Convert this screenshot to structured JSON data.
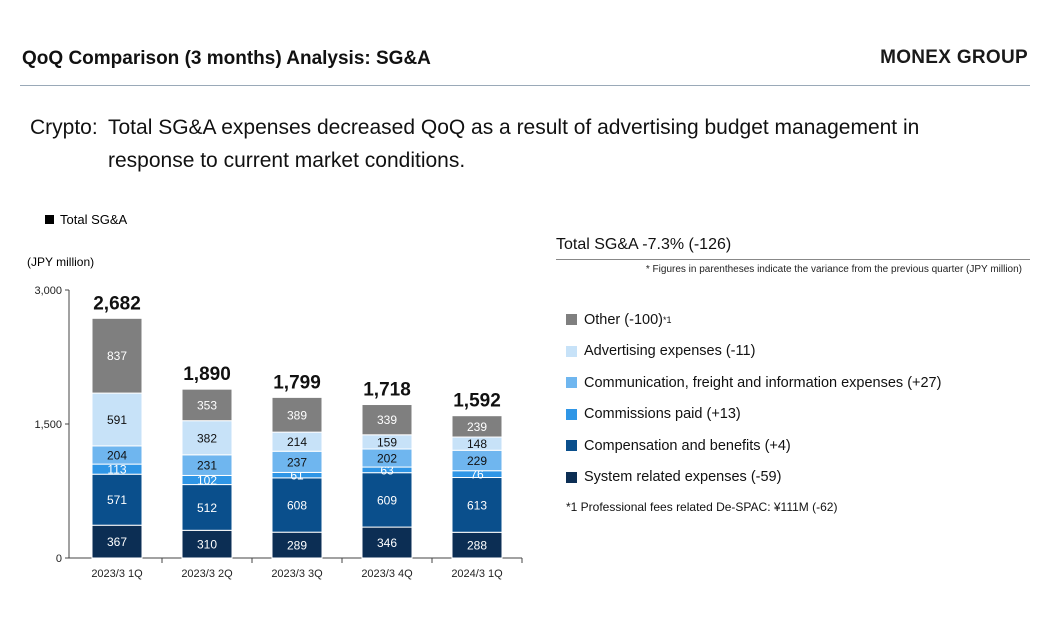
{
  "header": {
    "title": "QoQ Comparison (3 months) Analysis: SG&A",
    "brand": "MONEX GROUP"
  },
  "summary": {
    "label": "Crypto:",
    "line1": "Total SG&A expenses decreased QoQ as a result of advertising budget management in",
    "line2": "response to current market conditions."
  },
  "legend": {
    "total_label": "Total SG&A"
  },
  "unit_label": "(JPY million)",
  "right_panel": {
    "title": "Total SG&A -7.3% (-126)",
    "note": "* Figures in parentheses indicate the variance from the previous quarter (JPY million)",
    "items": [
      {
        "label": "Other (-100)",
        "sup": "*1",
        "color": "#7f7f7f"
      },
      {
        "label": "Advertising expenses (-11)",
        "sup": "",
        "color": "#c7e2f8"
      },
      {
        "label": "Communication, freight and information expenses (+27)",
        "sup": "",
        "color": "#6fb6ef"
      },
      {
        "label": "Commissions paid (+13)",
        "sup": "",
        "color": "#2f96e6"
      },
      {
        "label": "Compensation and benefits (+4)",
        "sup": "",
        "color": "#0a4f8c"
      },
      {
        "label": "System related expenses (-59)",
        "sup": "",
        "color": "#0c2e54"
      }
    ],
    "footnote": "*1 Professional fees related De-SPAC: ¥111M (-62)"
  },
  "chart_data": {
    "type": "bar",
    "stacked": true,
    "categories": [
      "2023/3 1Q",
      "2023/3 2Q",
      "2023/3 3Q",
      "2023/3 4Q",
      "2024/3 1Q"
    ],
    "series": [
      {
        "name": "System related expenses",
        "color": "#0c2e54",
        "label_color": "#ffffff",
        "values": [
          367,
          310,
          289,
          346,
          288
        ]
      },
      {
        "name": "Compensation and benefits",
        "color": "#0a4f8c",
        "label_color": "#ffffff",
        "values": [
          571,
          512,
          608,
          609,
          613
        ]
      },
      {
        "name": "Commissions paid",
        "color": "#2f96e6",
        "label_color": "#ffffff",
        "values": [
          113,
          102,
          61,
          63,
          76
        ]
      },
      {
        "name": "Communication, freight and information expenses",
        "color": "#6fb6ef",
        "label_color": "#111111",
        "values": [
          204,
          231,
          237,
          202,
          229
        ]
      },
      {
        "name": "Advertising expenses",
        "color": "#c7e2f8",
        "label_color": "#111111",
        "values": [
          591,
          382,
          214,
          159,
          148
        ]
      },
      {
        "name": "Other",
        "color": "#7f7f7f",
        "label_color": "#ffffff",
        "values": [
          837,
          353,
          389,
          339,
          239
        ]
      }
    ],
    "totals": [
      "2,682",
      "1,890",
      "1,799",
      "1,718",
      "1,592"
    ],
    "ylim": [
      0,
      3000
    ],
    "yticks": [
      0,
      1500,
      3000
    ],
    "ytick_labels": [
      "0",
      "1,500",
      "3,000"
    ],
    "ylabel": "(JPY million)",
    "legend": "top-left",
    "grid": false
  }
}
